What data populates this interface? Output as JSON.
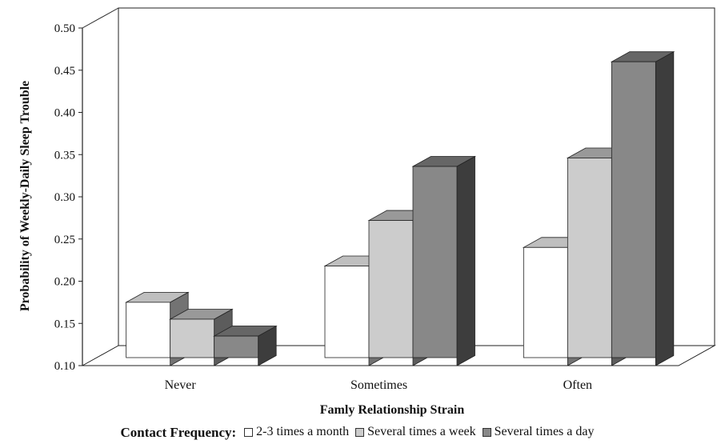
{
  "chart_data": {
    "type": "bar",
    "title": "",
    "xlabel": "Famly Relationship Strain",
    "ylabel": "Probability of Weekly-Daily Sleep Trouble",
    "categories": [
      "Never",
      "Sometimes",
      "Often"
    ],
    "y_ticks": [
      "0.10",
      "0.15",
      "0.20",
      "0.25",
      "0.30",
      "0.35",
      "0.40",
      "0.45",
      "0.50"
    ],
    "ylim": [
      0.1,
      0.5
    ],
    "legend_title": "Contact Frequency:",
    "legend_position": "bottom",
    "grid": false,
    "style": "3d",
    "series": [
      {
        "name": "2-3 times a month",
        "values": [
          0.175,
          0.218,
          0.24
        ],
        "color": "#ffffff"
      },
      {
        "name": "Several times a week",
        "values": [
          0.155,
          0.272,
          0.346
        ],
        "color": "#cccccc"
      },
      {
        "name": "Several times a day",
        "values": [
          0.135,
          0.336,
          0.46
        ],
        "color": "#888888"
      }
    ]
  }
}
